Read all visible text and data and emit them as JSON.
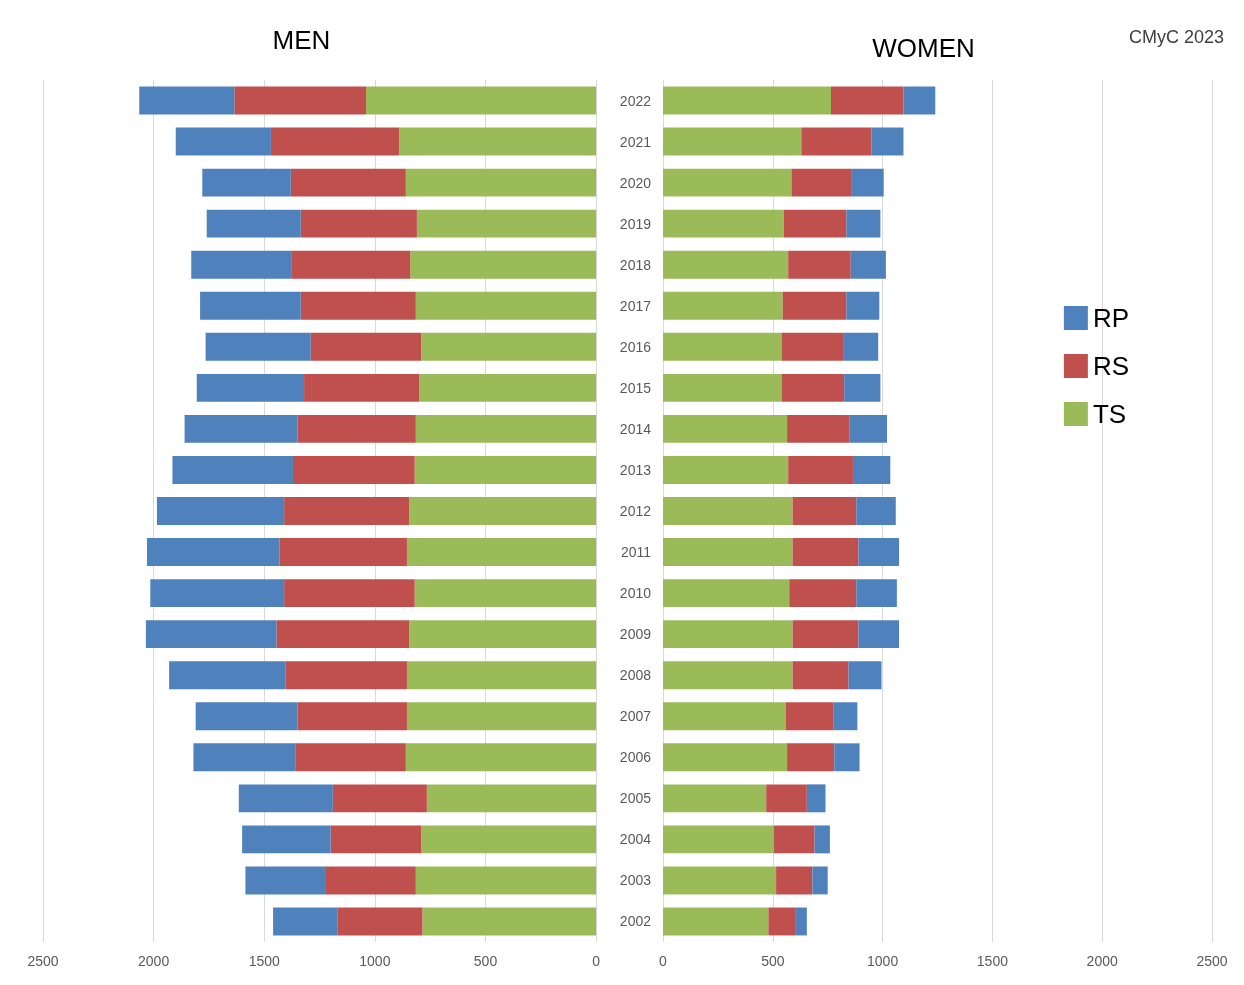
{
  "chart_data": [
    {
      "type": "bar",
      "title": "MEN",
      "orientation": "horizontal",
      "stacked": true,
      "categories": [
        "2022",
        "2021",
        "2020",
        "2019",
        "2018",
        "2017",
        "2016",
        "2015",
        "2014",
        "2013",
        "2012",
        "2011",
        "2010",
        "2009",
        "2008",
        "2007",
        "2006",
        "2005",
        "2004",
        "2003",
        "2002"
      ],
      "series": [
        {
          "color": "#9bbb59",
          "values": [
            1040,
            890,
            860,
            810,
            840,
            815,
            790,
            800,
            815,
            820,
            845,
            855,
            820,
            845,
            855,
            855,
            860,
            765,
            790,
            815,
            785
          ]
        },
        {
          "color": "#c0504d",
          "values": [
            595,
            580,
            520,
            525,
            535,
            520,
            500,
            520,
            535,
            550,
            565,
            575,
            590,
            600,
            550,
            495,
            500,
            425,
            410,
            410,
            385
          ]
        },
        {
          "color": "#4f81bd",
          "values": [
            430,
            430,
            400,
            425,
            455,
            455,
            475,
            485,
            510,
            545,
            575,
            600,
            605,
            590,
            525,
            460,
            460,
            425,
            400,
            360,
            290
          ]
        }
      ],
      "xlim": [
        2500,
        0
      ],
      "xticks": [
        2500,
        2000,
        1500,
        1000,
        500,
        0
      ],
      "grid": "x",
      "tick_labels": "x"
    },
    {
      "type": "bar",
      "title": "WOMEN",
      "annotations": [
        "CMyC 2023"
      ],
      "orientation": "horizontal",
      "stacked": true,
      "categories": [
        "2022",
        "2021",
        "2020",
        "2019",
        "2018",
        "2017",
        "2016",
        "2015",
        "2014",
        "2013",
        "2012",
        "2011",
        "2010",
        "2009",
        "2008",
        "2007",
        "2006",
        "2005",
        "2004",
        "2003",
        "2002"
      ],
      "series": [
        {
          "name": "TS",
          "color": "#9bbb59",
          "values": [
            765,
            630,
            585,
            550,
            570,
            545,
            540,
            540,
            565,
            570,
            590,
            590,
            575,
            590,
            590,
            560,
            565,
            470,
            505,
            515,
            480
          ]
        },
        {
          "name": "RS",
          "color": "#c0504d",
          "values": [
            330,
            320,
            275,
            285,
            285,
            290,
            280,
            285,
            285,
            295,
            290,
            300,
            305,
            300,
            255,
            215,
            215,
            185,
            185,
            165,
            125
          ]
        },
        {
          "name": "RP",
          "color": "#4f81bd",
          "values": [
            145,
            145,
            145,
            155,
            160,
            150,
            160,
            165,
            170,
            170,
            180,
            185,
            185,
            185,
            150,
            110,
            115,
            85,
            70,
            70,
            50
          ]
        }
      ],
      "xlim": [
        0,
        2500
      ],
      "xticks": [
        0,
        500,
        1000,
        1500,
        2000,
        2500
      ],
      "grid": "x",
      "legend": "right"
    }
  ]
}
